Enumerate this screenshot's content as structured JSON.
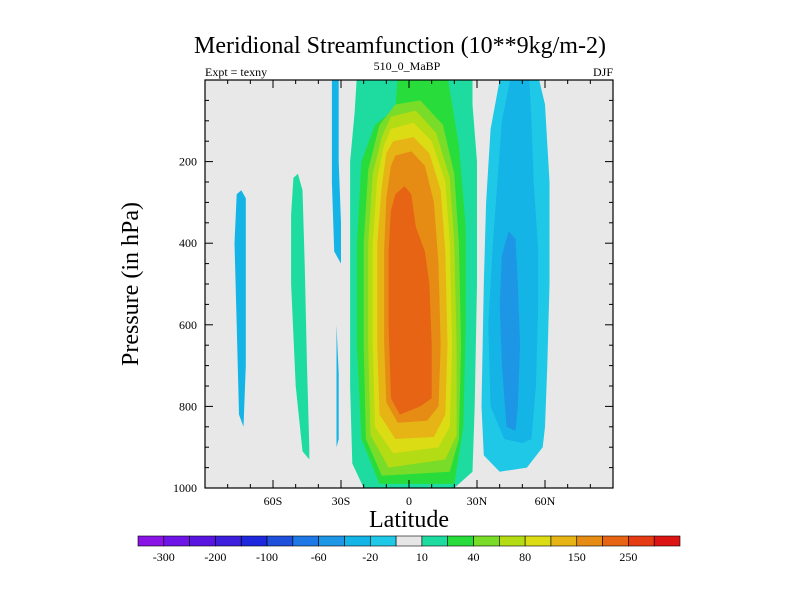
{
  "chart_data": {
    "type": "contour",
    "title": "Meridional Streamfunction (10**9kg/m-2)",
    "subtitle_left": "Expt = texny",
    "subtitle_center": "510_0_MaBP",
    "subtitle_right": "DJF",
    "xlabel": "Latitude",
    "ylabel": "Pressure (in hPa)",
    "xlim": [
      -90,
      90
    ],
    "ylim": [
      1000,
      0
    ],
    "x_ticks": [
      -60,
      -30,
      0,
      30,
      60
    ],
    "x_tick_labels": [
      "60S",
      "30S",
      "0",
      "30N",
      "60N"
    ],
    "y_ticks": [
      200,
      400,
      600,
      800,
      1000
    ],
    "y_tick_labels": [
      "200",
      "400",
      "600",
      "800",
      "1000"
    ],
    "background_color": "#e8e8e8",
    "contour_levels": [
      -300,
      -250,
      -200,
      -150,
      -100,
      -80,
      -60,
      -40,
      -20,
      -10,
      10,
      20,
      40,
      60,
      80,
      100,
      150,
      200,
      250,
      300
    ],
    "colorbar_colors": [
      "#8a14e6",
      "#6e14e6",
      "#5a14e0",
      "#3c1edc",
      "#1e28dc",
      "#1e50dc",
      "#1e78e6",
      "#1e96e6",
      "#14b4e6",
      "#1ec8e6",
      "#e6e6e6",
      "#1edca0",
      "#28dc3c",
      "#78dc28",
      "#b4dc14",
      "#dcdc14",
      "#e6b414",
      "#e68c14",
      "#e66414",
      "#e63c14",
      "#dc1414"
    ],
    "colorbar_labels": [
      "-300",
      "-200",
      "-100",
      "-60",
      "-20",
      "10",
      "40",
      "80",
      "150",
      "250"
    ],
    "contours": [
      {
        "name": "cell-neg-far-south",
        "value": -20,
        "color": "#14b4e6",
        "points": [
          [
            -76,
            280
          ],
          [
            -74,
            270
          ],
          [
            -72,
            290
          ],
          [
            -72,
            500
          ],
          [
            -72,
            700
          ],
          [
            -73,
            850
          ],
          [
            -75,
            820
          ],
          [
            -76,
            600
          ],
          [
            -77,
            400
          ]
        ]
      },
      {
        "name": "cell-pos-south",
        "value": 10,
        "color": "#1edca0",
        "points": [
          [
            -51,
            240
          ],
          [
            -49,
            230
          ],
          [
            -47,
            270
          ],
          [
            -46,
            450
          ],
          [
            -45,
            700
          ],
          [
            -44,
            900
          ],
          [
            -44,
            930
          ],
          [
            -47,
            910
          ],
          [
            -50,
            750
          ],
          [
            -52,
            500
          ],
          [
            -52,
            330
          ]
        ]
      },
      {
        "name": "cell-neg-30s-top",
        "value": -20,
        "color": "#14b4e6",
        "points": [
          [
            -34,
            -10
          ],
          [
            -31,
            -10
          ],
          [
            -31,
            80
          ],
          [
            -31,
            200
          ],
          [
            -30,
            350
          ],
          [
            -30,
            450
          ],
          [
            -33,
            420
          ],
          [
            -34,
            250
          ],
          [
            -34,
            100
          ]
        ]
      },
      {
        "name": "cell-neg-30s-bottom",
        "value": -20,
        "color": "#14b4e6",
        "points": [
          [
            -32,
            600
          ],
          [
            -31,
            720
          ],
          [
            -31,
            880
          ],
          [
            -32,
            900
          ],
          [
            -32,
            800
          ],
          [
            -32,
            700
          ]
        ]
      },
      {
        "name": "hadley-10",
        "value": 10,
        "color": "#1edca0",
        "points": [
          [
            -23,
            -10
          ],
          [
            28,
            -10
          ],
          [
            28,
            60
          ],
          [
            30,
            200
          ],
          [
            30,
            500
          ],
          [
            29,
            800
          ],
          [
            28,
            960
          ],
          [
            20,
            1000
          ],
          [
            -20,
            1000
          ],
          [
            -25,
            940
          ],
          [
            -26,
            750
          ],
          [
            -26,
            400
          ],
          [
            -26,
            200
          ],
          [
            -24,
            80
          ]
        ]
      },
      {
        "name": "hadley-40",
        "value": 40,
        "color": "#28dc3c",
        "points": [
          [
            -5,
            -10
          ],
          [
            17,
            -10
          ],
          [
            19,
            60
          ],
          [
            22,
            160
          ],
          [
            25,
            360
          ],
          [
            25,
            600
          ],
          [
            24,
            850
          ],
          [
            20,
            990
          ],
          [
            -13,
            990
          ],
          [
            -21,
            880
          ],
          [
            -23,
            650
          ],
          [
            -23,
            400
          ],
          [
            -21,
            200
          ],
          [
            -15,
            110
          ],
          [
            -6,
            70
          ]
        ]
      },
      {
        "name": "hadley-60",
        "value": 60,
        "color": "#78dc28",
        "points": [
          [
            -6,
            60
          ],
          [
            5,
            50
          ],
          [
            15,
            110
          ],
          [
            20,
            230
          ],
          [
            22,
            400
          ],
          [
            23,
            650
          ],
          [
            22,
            880
          ],
          [
            18,
            960
          ],
          [
            -12,
            970
          ],
          [
            -19,
            880
          ],
          [
            -20,
            650
          ],
          [
            -20,
            400
          ],
          [
            -18,
            220
          ],
          [
            -13,
            110
          ]
        ]
      },
      {
        "name": "hadley-80",
        "value": 80,
        "color": "#b4dc14",
        "points": [
          [
            -8,
            90
          ],
          [
            3,
            75
          ],
          [
            12,
            130
          ],
          [
            18,
            240
          ],
          [
            20,
            400
          ],
          [
            21,
            650
          ],
          [
            21,
            870
          ],
          [
            16,
            930
          ],
          [
            -9,
            950
          ],
          [
            -17,
            870
          ],
          [
            -18,
            650
          ],
          [
            -18,
            400
          ],
          [
            -16,
            230
          ],
          [
            -12,
            140
          ]
        ]
      },
      {
        "name": "hadley-100",
        "value": 100,
        "color": "#dcdc14",
        "points": [
          [
            -8,
            120
          ],
          [
            2,
            105
          ],
          [
            10,
            150
          ],
          [
            16,
            250
          ],
          [
            18,
            400
          ],
          [
            19,
            650
          ],
          [
            18,
            850
          ],
          [
            13,
            900
          ],
          [
            -7,
            915
          ],
          [
            -15,
            850
          ],
          [
            -16,
            650
          ],
          [
            -16,
            400
          ],
          [
            -14,
            240
          ],
          [
            -11,
            160
          ]
        ]
      },
      {
        "name": "hadley-150",
        "value": 150,
        "color": "#e6b414",
        "points": [
          [
            -7,
            150
          ],
          [
            2,
            140
          ],
          [
            9,
            180
          ],
          [
            14,
            270
          ],
          [
            16,
            420
          ],
          [
            17,
            650
          ],
          [
            16,
            820
          ],
          [
            11,
            875
          ],
          [
            -6,
            880
          ],
          [
            -13,
            820
          ],
          [
            -14,
            650
          ],
          [
            -14,
            400
          ],
          [
            -12,
            260
          ],
          [
            -10,
            180
          ]
        ]
      },
      {
        "name": "hadley-200",
        "value": 200,
        "color": "#e68c14",
        "points": [
          [
            -6,
            185
          ],
          [
            1,
            175
          ],
          [
            7,
            210
          ],
          [
            11,
            300
          ],
          [
            13,
            450
          ],
          [
            14,
            650
          ],
          [
            13,
            800
          ],
          [
            8,
            835
          ],
          [
            -5,
            840
          ],
          [
            -10,
            790
          ],
          [
            -11,
            640
          ],
          [
            -11,
            420
          ],
          [
            -10,
            290
          ],
          [
            -8,
            210
          ]
        ]
      },
      {
        "name": "hadley-250",
        "value": 250,
        "color": "#e66414",
        "points": [
          [
            -6,
            280
          ],
          [
            -2,
            260
          ],
          [
            1,
            280
          ],
          [
            3,
            360
          ],
          [
            7,
            420
          ],
          [
            9,
            500
          ],
          [
            10,
            650
          ],
          [
            10,
            780
          ],
          [
            5,
            800
          ],
          [
            -4,
            820
          ],
          [
            -8,
            780
          ],
          [
            -9,
            600
          ],
          [
            -9,
            420
          ],
          [
            -8,
            320
          ]
        ]
      },
      {
        "name": "ferrel-neg-10",
        "value": -10,
        "color": "#1ec8e6",
        "points": [
          [
            44,
            -10
          ],
          [
            57,
            -10
          ],
          [
            60,
            60
          ],
          [
            62,
            250
          ],
          [
            62,
            500
          ],
          [
            61,
            700
          ],
          [
            60,
            850
          ],
          [
            59,
            900
          ],
          [
            52,
            950
          ],
          [
            40,
            960
          ],
          [
            33,
            920
          ],
          [
            32,
            800
          ],
          [
            33,
            500
          ],
          [
            34,
            300
          ],
          [
            36,
            120
          ],
          [
            40,
            0
          ]
        ]
      },
      {
        "name": "ferrel-neg-20",
        "value": -20,
        "color": "#14b4e6",
        "points": [
          [
            45,
            -10
          ],
          [
            53,
            -10
          ],
          [
            54,
            100
          ],
          [
            55,
            250
          ],
          [
            57,
            420
          ],
          [
            57,
            550
          ],
          [
            56,
            750
          ],
          [
            54,
            880
          ],
          [
            50,
            890
          ],
          [
            42,
            880
          ],
          [
            36,
            800
          ],
          [
            35,
            600
          ],
          [
            37,
            400
          ],
          [
            39,
            250
          ],
          [
            41,
            100
          ]
        ]
      },
      {
        "name": "ferrel-neg-40",
        "value": -40,
        "color": "#1e96e6",
        "points": [
          [
            44,
            370
          ],
          [
            47,
            390
          ],
          [
            48,
            500
          ],
          [
            49,
            650
          ],
          [
            48,
            800
          ],
          [
            47,
            860
          ],
          [
            43,
            850
          ],
          [
            41,
            700
          ],
          [
            40,
            550
          ],
          [
            41,
            430
          ]
        ]
      }
    ]
  }
}
